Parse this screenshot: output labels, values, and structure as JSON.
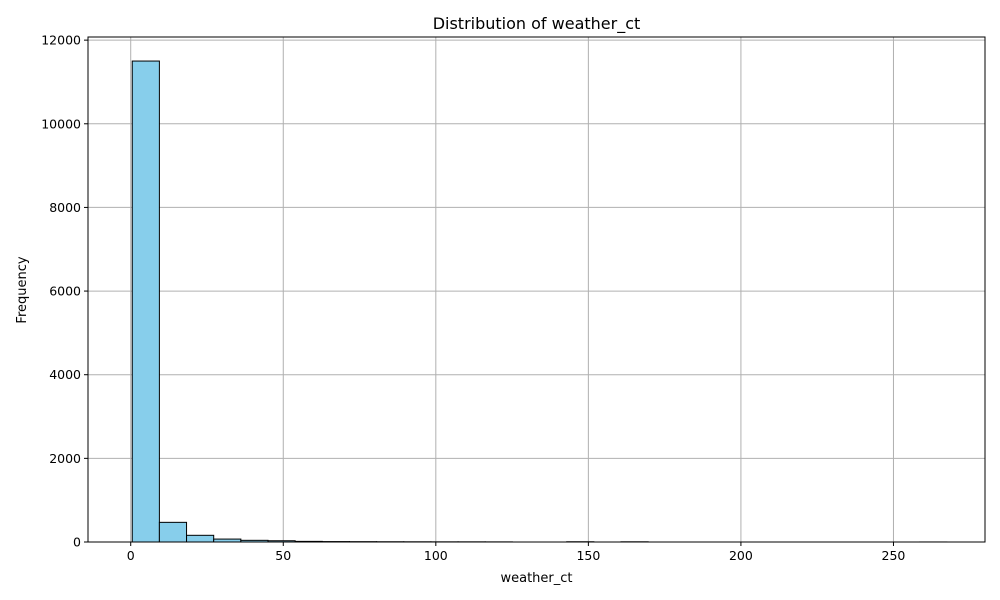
{
  "chart_data": {
    "type": "bar",
    "title": "Distribution of weather_ct",
    "xlabel": "weather_ct",
    "ylabel": "Frequency",
    "bins": [
      {
        "x0": 0.5,
        "x1": 9.4,
        "count": 11500
      },
      {
        "x0": 9.4,
        "x1": 18.3,
        "count": 470
      },
      {
        "x0": 18.3,
        "x1": 27.2,
        "count": 160
      },
      {
        "x0": 27.2,
        "x1": 36.1,
        "count": 70
      },
      {
        "x0": 36.1,
        "x1": 45.0,
        "count": 40
      },
      {
        "x0": 45.0,
        "x1": 53.9,
        "count": 30
      },
      {
        "x0": 53.9,
        "x1": 62.8,
        "count": 15
      },
      {
        "x0": 62.8,
        "x1": 71.7,
        "count": 10
      },
      {
        "x0": 71.7,
        "x1": 80.6,
        "count": 8
      },
      {
        "x0": 80.6,
        "x1": 89.5,
        "count": 6
      },
      {
        "x0": 89.5,
        "x1": 98.4,
        "count": 5
      },
      {
        "x0": 98.4,
        "x1": 107.3,
        "count": 4
      },
      {
        "x0": 107.3,
        "x1": 116.2,
        "count": 4
      },
      {
        "x0": 116.2,
        "x1": 125.1,
        "count": 3
      },
      {
        "x0": 125.1,
        "x1": 134.0,
        "count": 0
      },
      {
        "x0": 134.0,
        "x1": 142.9,
        "count": 0
      },
      {
        "x0": 142.9,
        "x1": 151.8,
        "count": 6
      },
      {
        "x0": 151.8,
        "x1": 160.7,
        "count": 0
      },
      {
        "x0": 160.7,
        "x1": 169.6,
        "count": 5
      },
      {
        "x0": 169.6,
        "x1": 178.5,
        "count": 0
      },
      {
        "x0": 178.5,
        "x1": 187.4,
        "count": 0
      },
      {
        "x0": 187.4,
        "x1": 196.3,
        "count": 0
      },
      {
        "x0": 196.3,
        "x1": 205.2,
        "count": 0
      },
      {
        "x0": 205.2,
        "x1": 214.1,
        "count": 0
      },
      {
        "x0": 214.1,
        "x1": 223.0,
        "count": 0
      },
      {
        "x0": 223.0,
        "x1": 231.9,
        "count": 0
      },
      {
        "x0": 231.9,
        "x1": 240.8,
        "count": 0
      },
      {
        "x0": 240.8,
        "x1": 249.7,
        "count": 0
      },
      {
        "x0": 249.7,
        "x1": 258.6,
        "count": 0
      },
      {
        "x0": 258.6,
        "x1": 267.5,
        "count": 1
      }
    ],
    "xlim": [
      -14,
      280
    ],
    "ylim": [
      0,
      12075
    ],
    "xticks": [
      0,
      50,
      100,
      150,
      200,
      250
    ],
    "yticks": [
      0,
      2000,
      4000,
      6000,
      8000,
      10000,
      12000
    ],
    "grid": true,
    "legend": "none",
    "bar_color": "#87ceeb",
    "edge_color": "#000000",
    "grid_color": "#b0b0b0"
  }
}
